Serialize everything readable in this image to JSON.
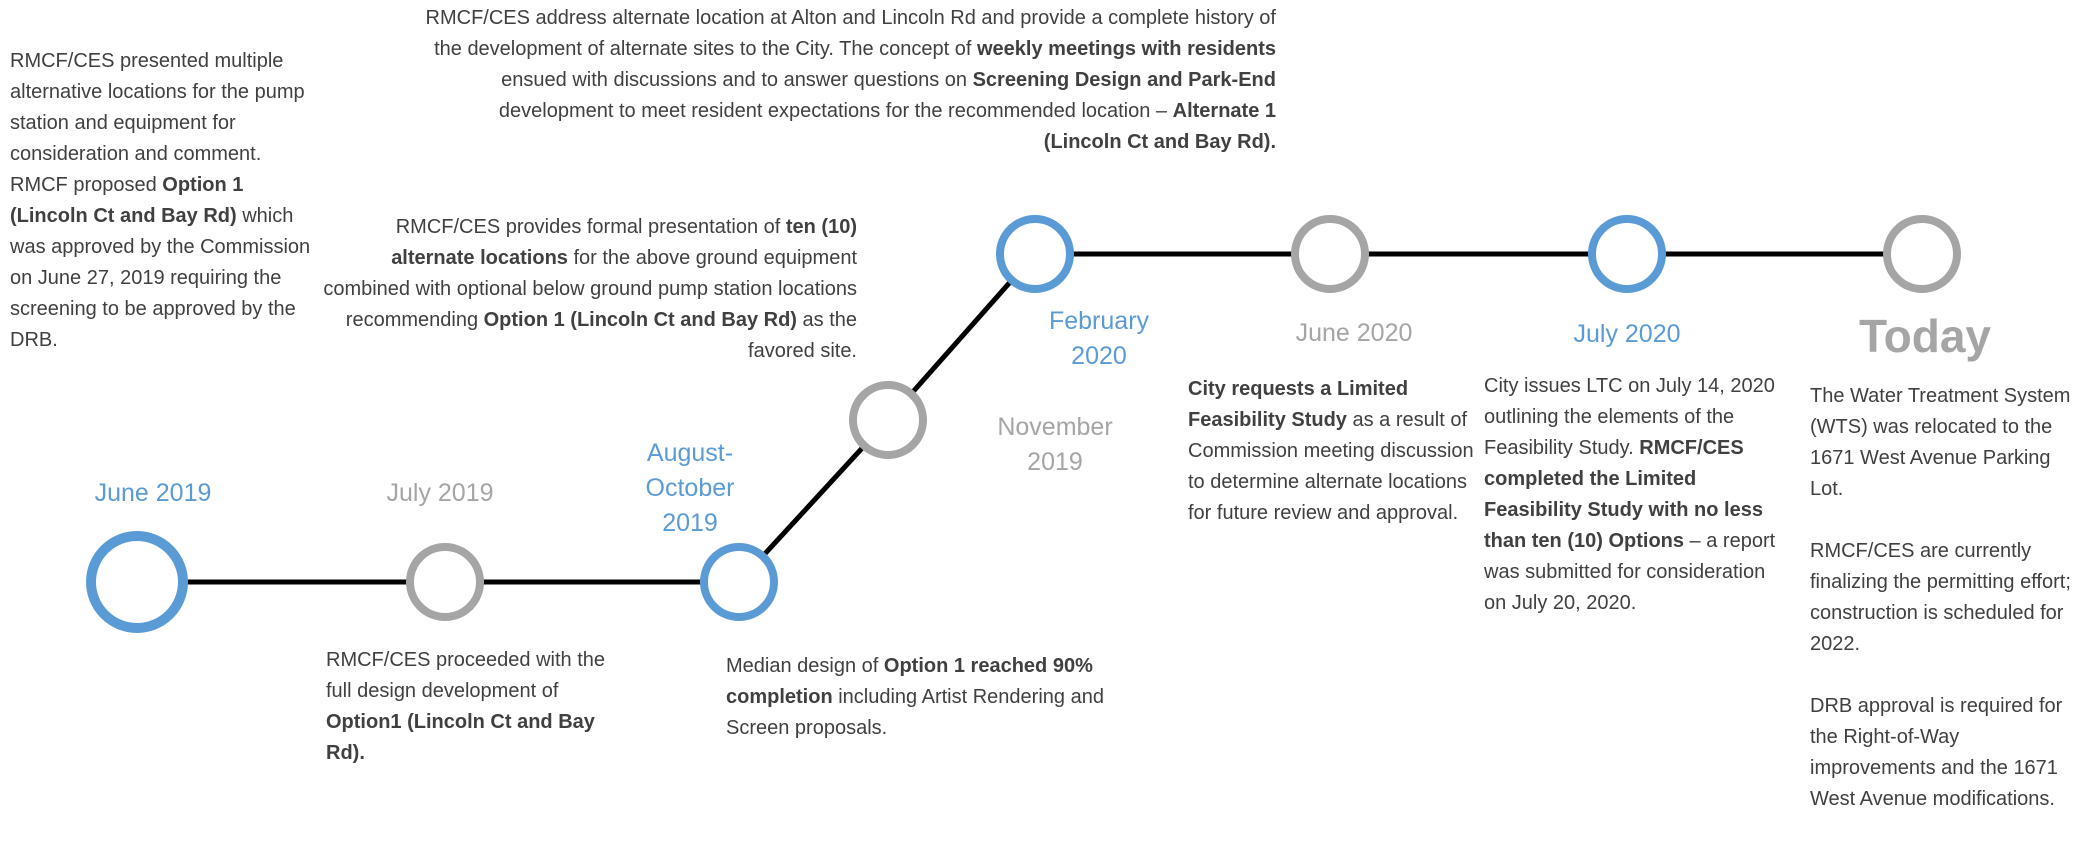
{
  "events": [
    {
      "date": [
        "June 2019"
      ],
      "color": "#5b9bd5",
      "description": [
        [
          {
            "text": "RMCF/CES presented multiple alternative locations for the pump station and equipment for consideration and comment. RMCF proposed ",
            "bold": false
          },
          {
            "text": "Option 1 (Lincoln Ct and Bay Rd)",
            "bold": true
          },
          {
            "text": " which was approved by the Commission on June 27, 2019 requiring the screening to be approved by the DRB.",
            "bold": false
          }
        ]
      ]
    },
    {
      "date": [
        "July 2019"
      ],
      "color": "#a5a5a5",
      "description": [
        [
          {
            "text": "RMCF/CES proceeded with the full design development of ",
            "bold": false
          },
          {
            "text": "Option1 (Lincoln Ct and Bay Rd).",
            "bold": true
          }
        ]
      ]
    },
    {
      "date": [
        "August-",
        "October",
        "2019"
      ],
      "color": "#5b9bd5",
      "description": [
        [
          {
            "text": "Median design of ",
            "bold": false
          },
          {
            "text": "Option 1 reached 90% completion",
            "bold": true
          },
          {
            "text": " including Artist Rendering and Screen proposals.",
            "bold": false
          }
        ]
      ]
    },
    {
      "date": [
        "November",
        "2019"
      ],
      "color": "#a5a5a5",
      "description": [
        [
          {
            "text": "RMCF/CES provides formal presentation of ",
            "bold": false
          },
          {
            "text": "ten (10) alternate locations",
            "bold": true
          },
          {
            "text": " for the above ground equipment combined with optional below ground pump station locations recommending ",
            "bold": false
          },
          {
            "text": "Option 1 (Lincoln Ct and Bay Rd)",
            "bold": true
          },
          {
            "text": " as the favored site.",
            "bold": false
          }
        ]
      ]
    },
    {
      "date": [
        "February",
        "2020"
      ],
      "color": "#5b9bd5",
      "description": [
        [
          {
            "text": "RMCF/CES address alternate location at Alton and Lincoln Rd and provide a complete history of the development of alternate sites to the City. The concept of ",
            "bold": false
          },
          {
            "text": "weekly meetings with residents",
            "bold": true
          },
          {
            "text": " ensued with discussions and to answer questions on ",
            "bold": false
          },
          {
            "text": "Screening Design and Park-End",
            "bold": true
          },
          {
            "text": " development to meet resident expectations for the recommended location – ",
            "bold": false
          },
          {
            "text": "Alternate 1 (Lincoln Ct and Bay Rd).",
            "bold": true
          }
        ]
      ]
    },
    {
      "date": [
        "June 2020"
      ],
      "color": "#a5a5a5",
      "description": [
        [
          {
            "text": "City requests a Limited Feasibility Study",
            "bold": true
          },
          {
            "text": " as a result of Commission meeting discussion to determine alternate locations for future review and approval.",
            "bold": false
          }
        ]
      ]
    },
    {
      "date": [
        "July 2020"
      ],
      "color": "#5b9bd5",
      "description": [
        [
          {
            "text": "City issues LTC on July 14, 2020 outlining the elements of the Feasibility Study. ",
            "bold": false
          },
          {
            "text": "RMCF/CES completed the Limited Feasibility Study with no less than ten (10) Options",
            "bold": true
          },
          {
            "text": " – a report was submitted for consideration on July 20, 2020.",
            "bold": false
          }
        ]
      ]
    },
    {
      "date": [
        "Today"
      ],
      "color": "#a5a5a5",
      "description": [
        [
          {
            "text": "The Water Treatment System (WTS) was relocated to the 1671 West Avenue Parking Lot.",
            "bold": false
          }
        ],
        [
          {
            "text": "RMCF/CES are currently finalizing the permitting effort; construction is scheduled for 2022.",
            "bold": false
          }
        ],
        [
          {
            "text": "DRB approval is required for the Right-of-Way improvements and the 1671 West Avenue modifications.",
            "bold": false
          }
        ]
      ]
    }
  ]
}
